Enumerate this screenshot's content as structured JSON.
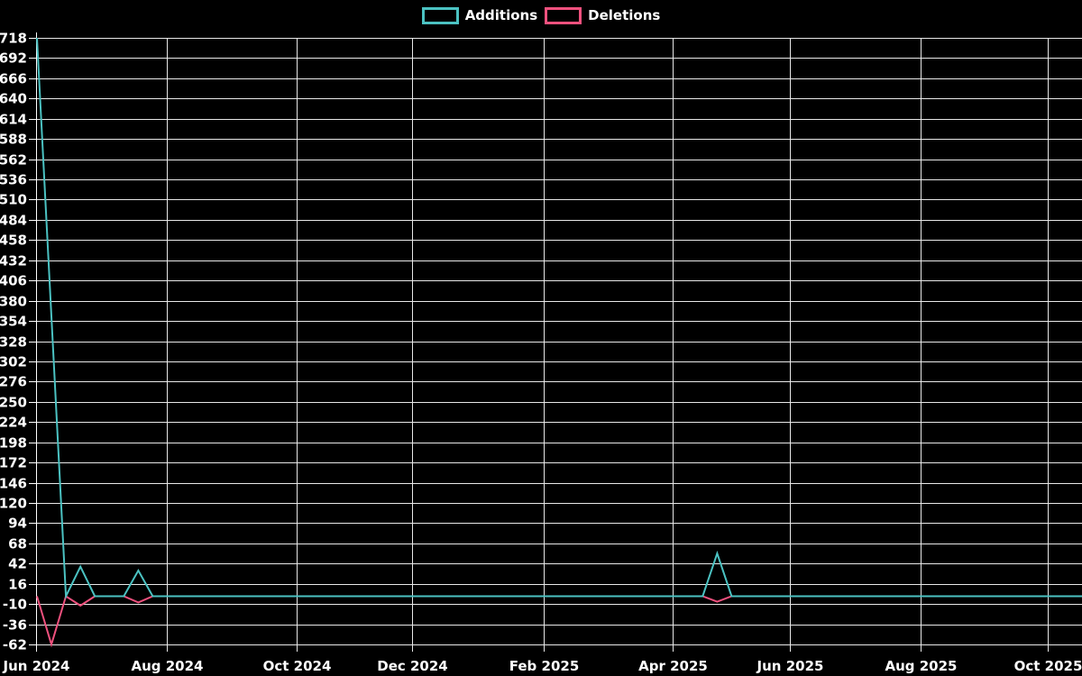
{
  "legend": {
    "items": [
      {
        "label": "Additions",
        "color": "#4BC2C2"
      },
      {
        "label": "Deletions",
        "color": "#F0517E"
      }
    ]
  },
  "chart_data": {
    "type": "line",
    "title": "",
    "xlabel": "",
    "ylabel": "",
    "background_color": "#000000",
    "text_color": "#ffffff",
    "grid": true,
    "legend_position": "top-center",
    "x_unit": "week",
    "x_axis": {
      "tick_labels": [
        "Jun 2024",
        "Aug 2024",
        "Oct 2024",
        "Dec 2024",
        "Feb 2025",
        "Apr 2025",
        "Jun 2025",
        "Aug 2025",
        "Oct 2025"
      ]
    },
    "y_axis": {
      "min": -62,
      "max": 718,
      "tick_step": 26,
      "tick_labels": [
        718,
        692,
        666,
        640,
        614,
        588,
        562,
        536,
        510,
        484,
        458,
        432,
        406,
        380,
        354,
        328,
        302,
        276,
        250,
        224,
        198,
        172,
        146,
        120,
        94,
        68,
        42,
        16,
        -10,
        -36,
        -62
      ]
    },
    "series": [
      {
        "name": "Additions",
        "color": "#4BC2C2",
        "values": [
          718,
          360,
          0,
          38,
          0,
          0,
          0,
          33,
          0,
          0,
          0,
          0,
          0,
          0,
          0,
          0,
          0,
          0,
          0,
          0,
          0,
          0,
          0,
          0,
          0,
          0,
          0,
          0,
          0,
          0,
          0,
          0,
          0,
          0,
          0,
          0,
          0,
          0,
          0,
          0,
          0,
          0,
          0,
          0,
          0,
          0,
          0,
          55,
          0,
          0,
          0,
          0,
          0,
          0,
          0,
          0,
          0,
          0,
          0,
          0,
          0,
          0,
          0,
          0,
          0,
          0,
          0,
          0,
          0,
          0,
          0,
          0,
          0,
          0
        ]
      },
      {
        "name": "Deletions",
        "color": "#F0517E",
        "values": [
          0,
          -62,
          0,
          -12,
          0,
          0,
          0,
          -8,
          0,
          0,
          0,
          0,
          0,
          0,
          0,
          0,
          0,
          0,
          0,
          0,
          0,
          0,
          0,
          0,
          0,
          0,
          0,
          0,
          0,
          0,
          0,
          0,
          0,
          0,
          0,
          0,
          0,
          0,
          0,
          0,
          0,
          0,
          0,
          0,
          0,
          0,
          0,
          -7,
          0,
          0,
          0,
          0,
          0,
          0,
          0,
          0,
          0,
          0,
          0,
          0,
          0,
          0,
          0,
          0,
          0,
          0,
          0,
          0,
          0,
          0,
          0,
          0,
          0,
          0
        ]
      }
    ]
  }
}
